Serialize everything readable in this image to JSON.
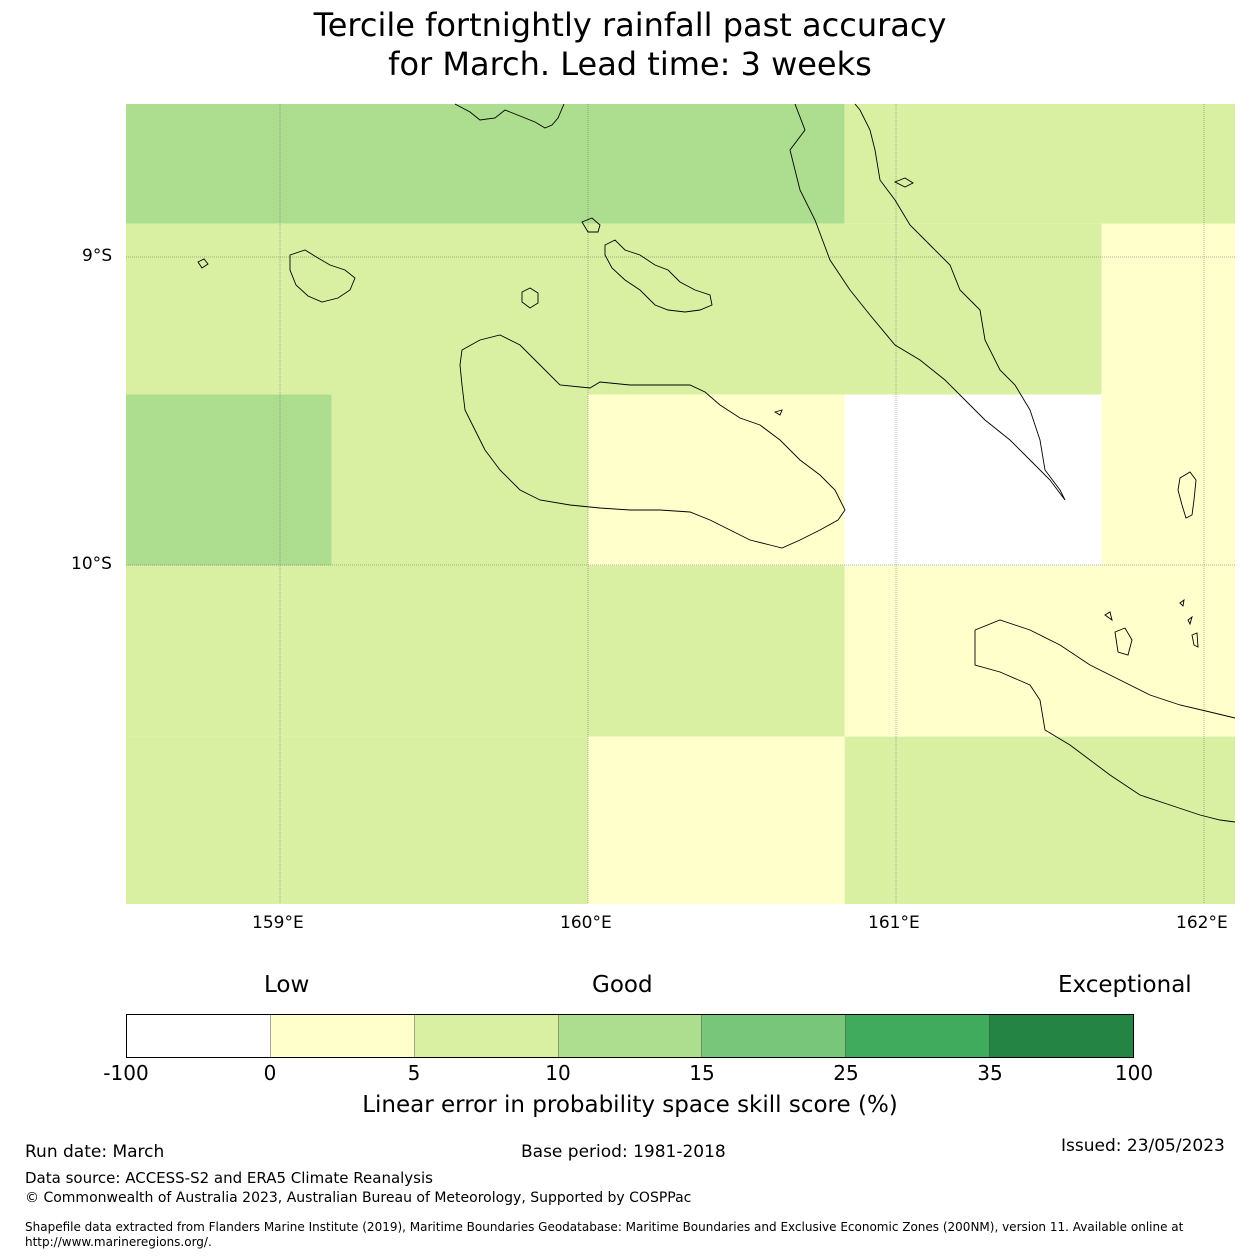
{
  "title": {
    "line1": "Tercile fortnightly rainfall past accuracy",
    "line2": "for March. Lead time: 3 weeks"
  },
  "map": {
    "lat_labels": [
      "9°S",
      "10°S"
    ],
    "lon_labels": [
      "159°E",
      "160°E",
      "161°E",
      "162°E"
    ],
    "extent": {
      "lon_min": 158.5,
      "lon_max": 162.1,
      "lat_max": -8.5,
      "lat_min": -11.1
    },
    "grid_cells": [
      {
        "lon0": 158.5,
        "lon1": 160.833,
        "lat0": -8.5,
        "lat1": -8.889,
        "score_class": "10-15"
      },
      {
        "lon0": 160.833,
        "lon1": 162.1,
        "lat0": -8.5,
        "lat1": -8.889,
        "score_class": "5-10"
      },
      {
        "lon0": 158.5,
        "lon1": 161.667,
        "lat0": -8.889,
        "lat1": -9.444,
        "score_class": "5-10"
      },
      {
        "lon0": 161.667,
        "lon1": 162.1,
        "lat0": -8.889,
        "lat1": -10.0,
        "score_class": "0-5"
      },
      {
        "lon0": 158.5,
        "lon1": 159.167,
        "lat0": -9.444,
        "lat1": -10.0,
        "score_class": "10-15"
      },
      {
        "lon0": 159.167,
        "lon1": 160.0,
        "lat0": -9.444,
        "lat1": -10.0,
        "score_class": "5-10"
      },
      {
        "lon0": 160.0,
        "lon1": 160.833,
        "lat0": -9.444,
        "lat1": -10.0,
        "score_class": "0-5"
      },
      {
        "lon0": 160.833,
        "lon1": 161.667,
        "lat0": -9.444,
        "lat1": -10.0,
        "score_class": "-100-0"
      },
      {
        "lon0": 158.5,
        "lon1": 160.833,
        "lat0": -10.0,
        "lat1": -10.556,
        "score_class": "5-10"
      },
      {
        "lon0": 160.833,
        "lon1": 162.1,
        "lat0": -10.0,
        "lat1": -10.556,
        "score_class": "0-5"
      },
      {
        "lon0": 158.5,
        "lon1": 160.0,
        "lat0": -10.556,
        "lat1": -11.1,
        "score_class": "5-10"
      },
      {
        "lon0": 160.0,
        "lon1": 160.833,
        "lat0": -10.556,
        "lat1": -11.1,
        "score_class": "0-5"
      },
      {
        "lon0": 160.833,
        "lon1": 162.1,
        "lat0": -10.556,
        "lat1": -11.1,
        "score_class": "5-10"
      }
    ]
  },
  "legend": {
    "categories": [
      "Low",
      "Good",
      "Exceptional"
    ],
    "ticks": [
      "-100",
      "0",
      "5",
      "10",
      "15",
      "25",
      "35",
      "100"
    ],
    "colors": [
      "#ffffff",
      "#ffffcc",
      "#d9f0a3",
      "#addd8e",
      "#78c679",
      "#41ab5d",
      "#238443"
    ],
    "title": "Linear error in probability space skill score (%)"
  },
  "footer": {
    "run_date": "Run date: March",
    "base_period": "Base period: 1981-2018",
    "issued": "Issued: 23/05/2023",
    "data_source": "Data source: ACCESS-S2 and ERA5 Climate Reanalysis",
    "copyright": "© Commonwealth of Australia 2023, Australian Bureau of Meteorology, Supported by COSPPac",
    "shapefile": "Shapefile data extracted from Flanders Marine Institute (2019), Maritime Boundaries Geodatabase: Maritime Boundaries and Exclusive Economic Zones (200NM), version 11. Available online at http://www.marineregions.org/."
  }
}
